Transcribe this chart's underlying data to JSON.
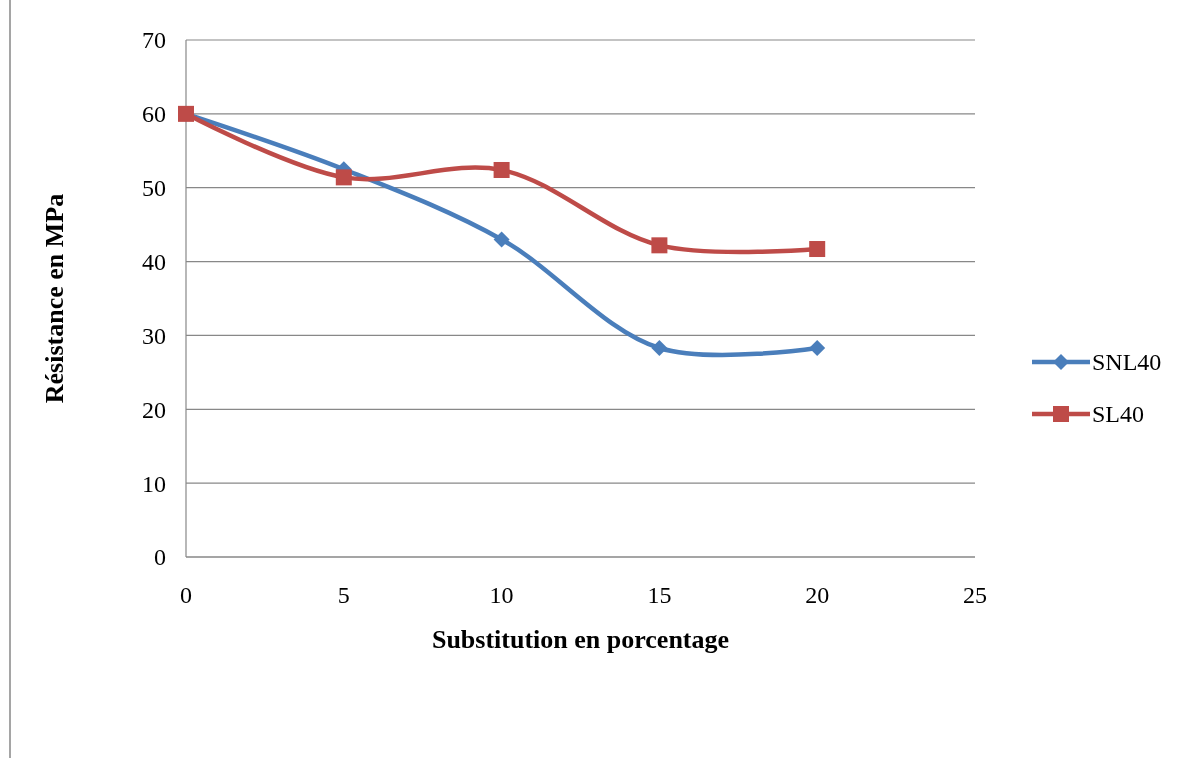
{
  "chart_data": {
    "type": "line",
    "xlabel": "Substitution en porcentage",
    "ylabel": "Résistance en MPa",
    "x": [
      0,
      5,
      10,
      15,
      20
    ],
    "series": [
      {
        "name": "SNL40",
        "color": "#4a7ebb",
        "marker": "diamond",
        "values": [
          60,
          52.5,
          43,
          28.3,
          28.3
        ]
      },
      {
        "name": "SL40",
        "color": "#be4b48",
        "marker": "square",
        "values": [
          60,
          51.4,
          52.4,
          42.2,
          41.7
        ]
      }
    ],
    "xlim": [
      0,
      25
    ],
    "xticks": [
      0,
      5,
      10,
      15,
      20,
      25
    ],
    "ylim": [
      0,
      70
    ],
    "yticks": [
      0,
      10,
      20,
      30,
      40,
      50,
      60,
      70
    ],
    "grid": "y",
    "legend": "right"
  }
}
